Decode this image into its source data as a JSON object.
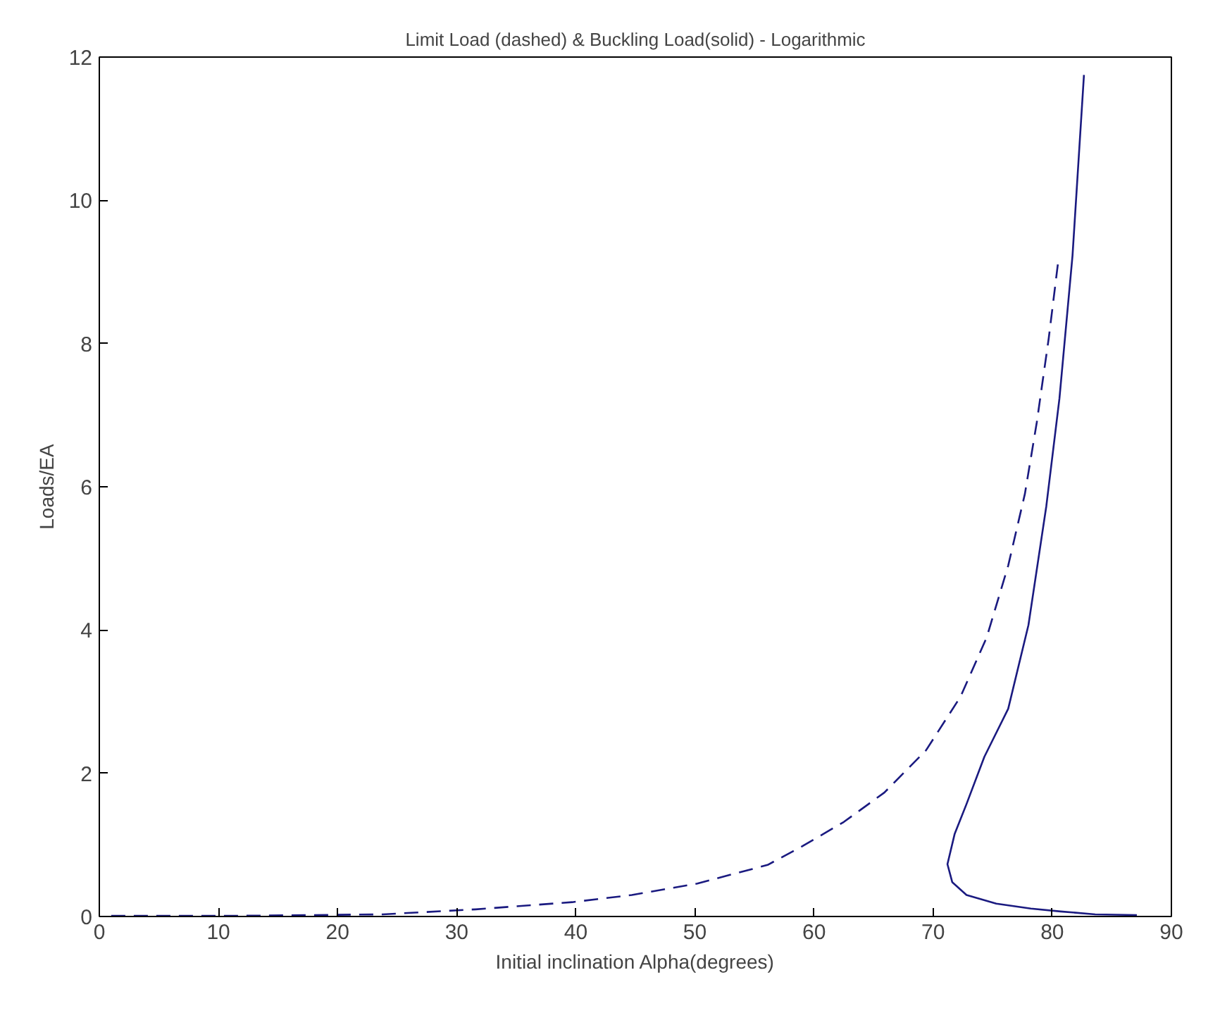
{
  "chart_data": {
    "type": "line",
    "title": "Limit Load (dashed) & Buckling Load(solid) - Logarithmic",
    "xlabel": "Initial inclination Alpha(degrees)",
    "ylabel": "Loads/EA",
    "xlim": [
      0,
      90
    ],
    "ylim": [
      0,
      12
    ],
    "xticks": [
      0,
      10,
      20,
      30,
      40,
      50,
      60,
      70,
      80,
      90
    ],
    "yticks": [
      0,
      2,
      4,
      6,
      8,
      10,
      12
    ],
    "grid": false,
    "series": [
      {
        "color": "#1a1a80",
        "line_style": "dashed",
        "x": [
          1,
          12,
          23.8,
          31.6,
          39.7,
          44.7,
          50.2,
          56.1,
          59.0,
          62.5,
          65.9,
          69.4,
          72.3,
          74.5,
          76.3,
          77.7,
          78.7,
          79.7,
          80.5
        ],
        "values": [
          0.01,
          0.01,
          0.03,
          0.1,
          0.2,
          0.3,
          0.46,
          0.72,
          0.98,
          1.32,
          1.73,
          2.32,
          3.07,
          3.9,
          4.9,
          5.9,
          6.9,
          8.07,
          9.15
        ]
      },
      {
        "color": "#1a1a80",
        "line_style": "solid",
        "x": [
          82.66,
          81.7,
          80.6,
          79.5,
          78.0,
          76.3,
          74.3,
          72.8,
          71.8,
          71.2,
          71.6,
          72.8,
          75.3,
          78.2,
          80.7,
          83.6,
          87.1
        ],
        "values": [
          11.75,
          9.23,
          7.23,
          5.73,
          4.07,
          2.9,
          2.23,
          1.57,
          1.15,
          0.73,
          0.48,
          0.3,
          0.18,
          0.11,
          0.07,
          0.03,
          0.02
        ]
      }
    ]
  }
}
